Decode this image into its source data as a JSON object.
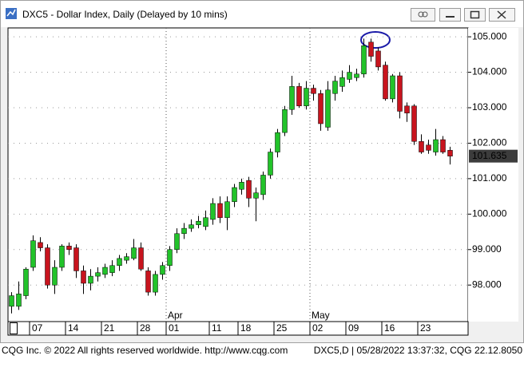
{
  "window": {
    "title": "DXC5 - Dollar Index, Daily (Delayed by 10 mins)"
  },
  "chart_data": {
    "type": "candlestick",
    "categories": [
      null,
      null,
      null,
      "07",
      null,
      null,
      null,
      null,
      "14",
      null,
      null,
      null,
      null,
      "21",
      null,
      null,
      null,
      null,
      "28",
      null,
      null,
      null,
      "01",
      null,
      null,
      null,
      null,
      null,
      "11",
      null,
      null,
      null,
      "18",
      null,
      null,
      null,
      null,
      "25",
      null,
      null,
      null,
      null,
      "02",
      null,
      null,
      null,
      null,
      "09",
      null,
      null,
      null,
      null,
      "16",
      null,
      null,
      null,
      null,
      "23",
      null,
      null,
      null,
      null
    ],
    "month_labels": [
      "Apr",
      "May"
    ],
    "open": [
      97.4,
      97.4,
      97.7,
      98.5,
      99.2,
      99.05,
      98.0,
      98.5,
      99.1,
      99.05,
      98.4,
      98.05,
      98.25,
      98.3,
      98.35,
      98.55,
      98.7,
      98.75,
      99.05,
      98.4,
      97.8,
      98.3,
      98.55,
      99.0,
      99.45,
      99.6,
      99.7,
      99.65,
      99.85,
      100.3,
      99.9,
      100.35,
      100.7,
      100.95,
      100.45,
      100.55,
      101.1,
      101.75,
      102.3,
      102.95,
      103.6,
      103.05,
      103.55,
      103.4,
      102.45,
      103.4,
      103.6,
      103.8,
      103.85,
      103.95,
      104.85,
      104.6,
      104.2,
      103.25,
      103.9,
      103.05,
      103.05,
      102.05,
      101.95,
      101.75,
      102.1,
      101.8
    ],
    "high": [
      97.8,
      98.1,
      98.5,
      99.4,
      99.35,
      99.15,
      98.7,
      99.15,
      99.2,
      99.15,
      98.55,
      98.45,
      98.5,
      98.6,
      98.7,
      98.85,
      98.9,
      99.3,
      99.2,
      98.5,
      98.4,
      98.65,
      99.1,
      99.6,
      99.75,
      99.85,
      99.95,
      100.1,
      100.45,
      100.5,
      100.5,
      100.85,
      101.0,
      101.05,
      100.75,
      101.2,
      101.85,
      102.4,
      103.05,
      103.9,
      103.7,
      103.75,
      103.65,
      103.5,
      103.75,
      103.9,
      104.05,
      104.2,
      104.1,
      104.95,
      104.95,
      104.7,
      104.3,
      103.95,
      104.0,
      103.15,
      103.1,
      102.25,
      102.1,
      102.4,
      102.2,
      101.9
    ],
    "low": [
      97.2,
      97.3,
      97.6,
      98.4,
      98.95,
      97.9,
      97.75,
      98.4,
      98.85,
      98.2,
      97.75,
      97.85,
      98.1,
      98.2,
      98.25,
      98.4,
      98.6,
      98.7,
      98.4,
      97.7,
      97.7,
      98.15,
      98.4,
      98.9,
      99.3,
      99.5,
      99.6,
      99.55,
      99.7,
      99.75,
      99.55,
      100.2,
      100.55,
      100.2,
      99.8,
      100.4,
      101.0,
      101.6,
      102.2,
      102.8,
      103.0,
      102.95,
      103.2,
      102.35,
      102.35,
      103.2,
      103.45,
      103.7,
      103.75,
      103.85,
      104.3,
      104.05,
      103.2,
      103.15,
      102.7,
      102.6,
      101.95,
      101.7,
      101.7,
      101.65,
      101.7,
      101.4
    ],
    "close": [
      97.7,
      97.75,
      98.45,
      99.25,
      99.05,
      98.0,
      98.5,
      99.1,
      99.0,
      98.4,
      98.05,
      98.25,
      98.35,
      98.5,
      98.55,
      98.75,
      98.8,
      99.05,
      98.45,
      97.8,
      98.3,
      98.55,
      99.0,
      99.45,
      99.6,
      99.7,
      99.8,
      99.9,
      100.3,
      99.9,
      100.35,
      100.75,
      100.9,
      100.45,
      100.6,
      101.1,
      101.75,
      102.3,
      102.95,
      103.6,
      103.05,
      103.55,
      103.4,
      102.55,
      103.5,
      103.75,
      103.85,
      104.0,
      103.95,
      104.75,
      104.45,
      104.15,
      103.25,
      103.9,
      102.9,
      102.85,
      102.05,
      101.75,
      101.8,
      102.1,
      101.75,
      101.635
    ],
    "up_color": "#22c32a",
    "down_color": "#c8141e",
    "last_value": 101.635,
    "ylim": [
      96.97,
      105.25
    ],
    "yticks": [
      {
        "value": 98,
        "label": "98.000"
      },
      {
        "value": 99,
        "label": "99.000"
      },
      {
        "value": 100,
        "label": "100.000"
      },
      {
        "value": 101,
        "label": "101.000"
      },
      {
        "value": 102,
        "label": "102.000"
      },
      {
        "value": 103,
        "label": "103.000"
      },
      {
        "value": 104,
        "label": "104.000"
      },
      {
        "value": 105,
        "label": "105.000"
      }
    ],
    "grid": true
  },
  "footer": {
    "left": "CQG Inc. © 2022 All rights reserved worldwide. http://www.cqg.com",
    "right": "DXC5,D | 05/28/2022 13:37:32, CQG 22.12.8050"
  }
}
